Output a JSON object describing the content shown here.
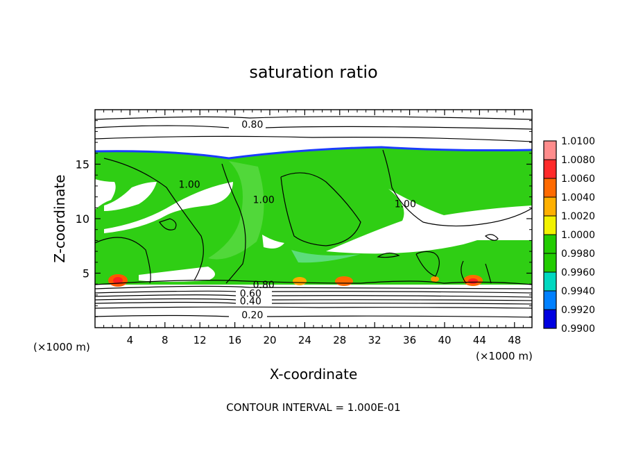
{
  "chart_data": {
    "type": "heatmap",
    "title": "saturation ratio",
    "xlabel": "X-coordinate",
    "ylabel": "Z-coordinate",
    "x_unit": "(×1000 m)",
    "z_unit": "(×1000 m)",
    "xlim": [
      0,
      50
    ],
    "ylim": [
      0,
      20
    ],
    "x_ticks": [
      4,
      8,
      12,
      16,
      20,
      24,
      28,
      32,
      36,
      40,
      44,
      48
    ],
    "y_ticks": [
      5,
      10,
      15
    ],
    "contour_interval_text": "CONTOUR INTERVAL = 1.000E-01",
    "colorbar": {
      "ticks": [
        "1.0100",
        "1.0080",
        "1.0060",
        "1.0040",
        "1.0020",
        "1.0000",
        "0.9980",
        "0.9960",
        "0.9940",
        "0.9920",
        "0.9900"
      ],
      "colors": [
        "#ff8c8c",
        "#ff2a2a",
        "#ff6a00",
        "#ffb000",
        "#f2f200",
        "#22cc00",
        "#22cc00",
        "#00d8c0",
        "#0080ff",
        "#0000e0",
        "#6a1a9a"
      ]
    },
    "contour_labels": [
      {
        "text": "0.80",
        "x": 18.0,
        "z": 18.6
      },
      {
        "text": "1.00",
        "x": 10.8,
        "z": 13.1
      },
      {
        "text": "1.00",
        "x": 19.3,
        "z": 11.7
      },
      {
        "text": "1.00",
        "x": 35.5,
        "z": 11.3
      },
      {
        "text": "0.80",
        "x": 19.3,
        "z": 3.9
      },
      {
        "text": "0.60",
        "x": 17.8,
        "z": 3.1
      },
      {
        "text": "0.40",
        "x": 17.8,
        "z": 2.4
      },
      {
        "text": "0.20",
        "x": 18.0,
        "z": 1.1
      }
    ]
  }
}
